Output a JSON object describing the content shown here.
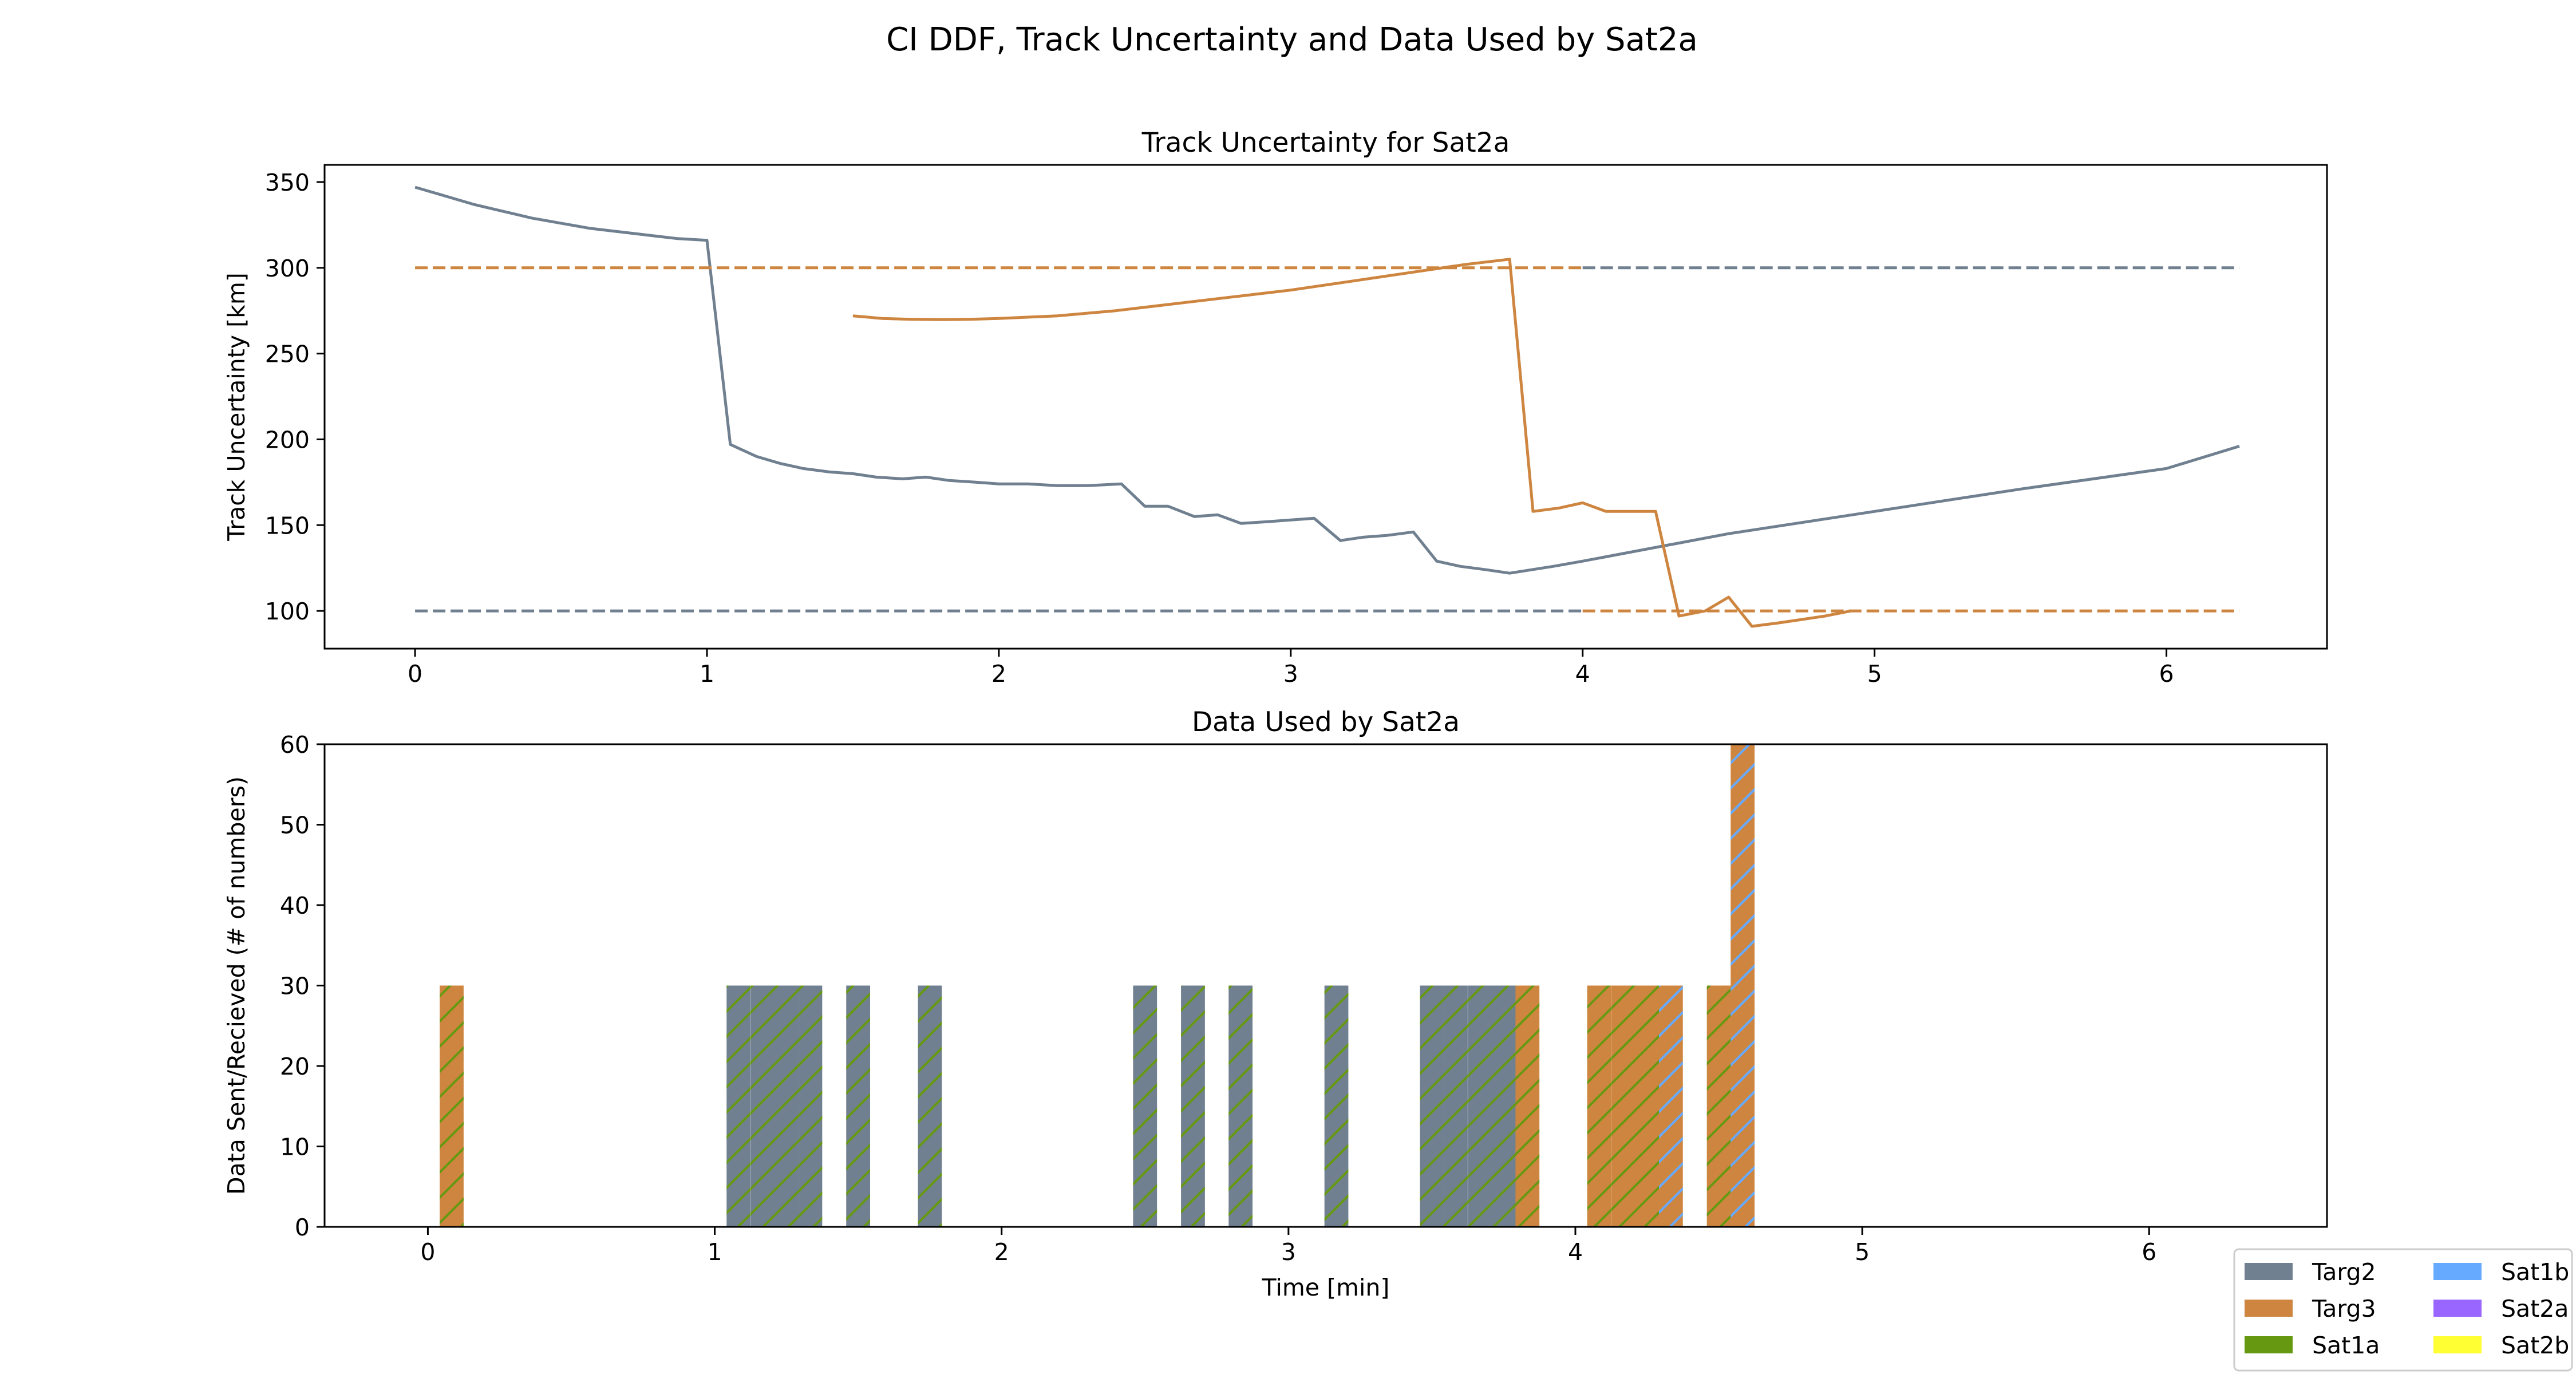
{
  "figure": {
    "suptitle": "CI DDF, Track Uncertainty and Data Used by Sat2a"
  },
  "colors": {
    "Targ2": "#708090",
    "Targ3": "#cd853f",
    "Sat1a": "#669911",
    "Sat1b": "#66aaff",
    "Sat2a": "#9966ff",
    "Sat2b": "#ffff33"
  },
  "legend": {
    "placement": "bottom-right",
    "entries": [
      {
        "label": "Targ2",
        "color": "#708090"
      },
      {
        "label": "Targ3",
        "color": "#cd853f"
      },
      {
        "label": "Sat1a",
        "color": "#669911"
      },
      {
        "label": "Sat1b",
        "color": "#66aaff"
      },
      {
        "label": "Sat2a",
        "color": "#9966ff"
      },
      {
        "label": "Sat2b",
        "color": "#ffff33"
      }
    ]
  },
  "chart_data": [
    {
      "type": "line",
      "title": "Track Uncertainty for Sat2a",
      "xlabel": "",
      "ylabel": "Track Uncertainty [km]",
      "xlim": [
        -0.31,
        6.55
      ],
      "ylim": [
        78,
        360
      ],
      "xticks": [
        0,
        1,
        2,
        3,
        4,
        5,
        6
      ],
      "yticks": [
        100,
        150,
        200,
        250,
        300,
        350
      ],
      "grid": false,
      "series": [
        {
          "name": "Targ2",
          "color": "#708090",
          "style": "solid",
          "x": [
            0,
            0.1,
            0.2,
            0.3,
            0.4,
            0.5,
            0.6,
            0.7,
            0.8,
            0.9,
            1.0,
            1.08,
            1.17,
            1.25,
            1.33,
            1.42,
            1.5,
            1.58,
            1.67,
            1.75,
            1.83,
            1.92,
            2.0,
            2.1,
            2.2,
            2.3,
            2.42,
            2.5,
            2.58,
            2.67,
            2.75,
            2.83,
            2.92,
            3.0,
            3.08,
            3.17,
            3.25,
            3.33,
            3.42,
            3.5,
            3.58,
            3.67,
            3.75,
            3.9,
            4.0,
            4.5,
            5.0,
            5.5,
            6.0,
            6.25
          ],
          "y": [
            347,
            342,
            337,
            333,
            329,
            326,
            323,
            321,
            319,
            317,
            316,
            197,
            190,
            186,
            183,
            181,
            180,
            178,
            177,
            178,
            176,
            175,
            174,
            174,
            173,
            173,
            174,
            161,
            161,
            155,
            156,
            151,
            152,
            153,
            154,
            141,
            143,
            144,
            146,
            129,
            126,
            124,
            122,
            126,
            129,
            145,
            158,
            171,
            183,
            196
          ]
        },
        {
          "name": "Targ3",
          "color": "#cd853f",
          "style": "solid",
          "x": [
            1.5,
            1.6,
            1.7,
            1.8,
            1.9,
            2.0,
            2.2,
            2.4,
            2.6,
            2.8,
            3.0,
            3.2,
            3.4,
            3.6,
            3.75,
            3.83,
            3.92,
            4.0,
            4.08,
            4.17,
            4.25,
            4.33,
            4.42,
            4.5,
            4.58,
            4.67,
            4.75,
            4.83,
            4.92
          ],
          "y": [
            272,
            270.5,
            270,
            269.8,
            270,
            270.5,
            272,
            275,
            279,
            283,
            287,
            292,
            297,
            302,
            305,
            158,
            160,
            163,
            158,
            158,
            158,
            97,
            100,
            108,
            91,
            93,
            95,
            97,
            100
          ]
        },
        {
          "name": "Targ2 bounds",
          "color": "#708090",
          "style": "dashed",
          "segments": [
            {
              "x": [
                0,
                4.0
              ],
              "y": [
                100,
                100
              ]
            },
            {
              "x": [
                4.0,
                6.25
              ],
              "y": [
                300,
                300
              ]
            }
          ]
        },
        {
          "name": "Targ3 bounds",
          "color": "#cd853f",
          "style": "dashed",
          "segments": [
            {
              "x": [
                0,
                4.0
              ],
              "y": [
                300,
                300
              ]
            },
            {
              "x": [
                4.0,
                6.25
              ],
              "y": [
                100,
                100
              ]
            }
          ]
        }
      ]
    },
    {
      "type": "bar",
      "title": "Data Used by Sat2a",
      "xlabel": "Time [min]",
      "ylabel": "Data Sent/Recieved (# of numbers)",
      "xlim": [
        -0.36,
        6.62
      ],
      "ylim": [
        0,
        60
      ],
      "xticks": [
        0,
        1,
        2,
        3,
        4,
        5,
        6
      ],
      "yticks": [
        0,
        10,
        20,
        30,
        40,
        50,
        60
      ],
      "grid": false,
      "bar_width": 0.0833,
      "bars": [
        {
          "x": 0.083,
          "value": 30,
          "target": "Targ3",
          "sat": "Sat1a"
        },
        {
          "x": 1.083,
          "value": 30,
          "target": "Targ2",
          "sat": "Sat1a"
        },
        {
          "x": 1.167,
          "value": 30,
          "target": "Targ2",
          "sat": "Sat1a"
        },
        {
          "x": 1.25,
          "value": 30,
          "target": "Targ2",
          "sat": "Sat1a"
        },
        {
          "x": 1.333,
          "value": 30,
          "target": "Targ2",
          "sat": "Sat1a"
        },
        {
          "x": 1.5,
          "value": 30,
          "target": "Targ2",
          "sat": "Sat1a"
        },
        {
          "x": 1.75,
          "value": 30,
          "target": "Targ2",
          "sat": "Sat1a"
        },
        {
          "x": 2.5,
          "value": 30,
          "target": "Targ2",
          "sat": "Sat1a"
        },
        {
          "x": 2.667,
          "value": 30,
          "target": "Targ2",
          "sat": "Sat1a"
        },
        {
          "x": 2.833,
          "value": 30,
          "target": "Targ2",
          "sat": "Sat1a"
        },
        {
          "x": 3.167,
          "value": 30,
          "target": "Targ2",
          "sat": "Sat1a"
        },
        {
          "x": 3.5,
          "value": 30,
          "target": "Targ2",
          "sat": "Sat1a"
        },
        {
          "x": 3.583,
          "value": 30,
          "target": "Targ2",
          "sat": "Sat1a"
        },
        {
          "x": 3.667,
          "value": 30,
          "target": "Targ2",
          "sat": "Sat1a"
        },
        {
          "x": 3.75,
          "value": 30,
          "target": "Targ2",
          "sat": "Sat1a"
        },
        {
          "x": 3.833,
          "value": 30,
          "target": "Targ3",
          "sat": "Sat1a"
        },
        {
          "x": 4.083,
          "value": 30,
          "target": "Targ3",
          "sat": "Sat1a"
        },
        {
          "x": 4.167,
          "value": 30,
          "target": "Targ3",
          "sat": "Sat1a"
        },
        {
          "x": 4.25,
          "value": 30,
          "target": "Targ3",
          "sat": "Sat1a"
        },
        {
          "x": 4.333,
          "value": 30,
          "target": "Targ3",
          "sat": "Sat1b"
        },
        {
          "x": 4.5,
          "value": 30,
          "target": "Targ3",
          "sat": "Sat1a"
        },
        {
          "x": 4.583,
          "value": 60,
          "target": "Targ3",
          "sat": "Sat1b"
        }
      ]
    }
  ]
}
